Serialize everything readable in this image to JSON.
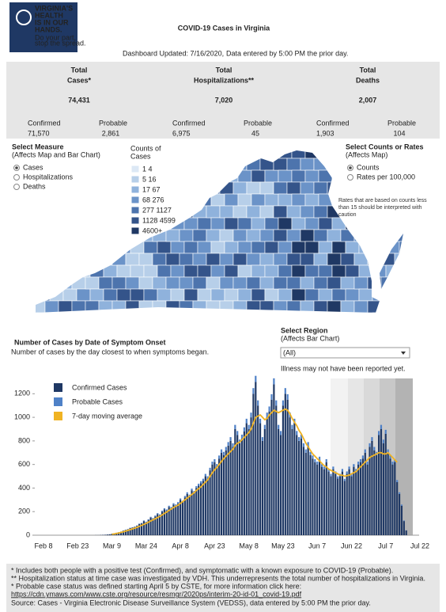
{
  "header": {
    "logo_lines": [
      "VIRGINIA'S",
      "HEALTH",
      "IS IN OUR",
      "HANDS."
    ],
    "logo_tagline": [
      "Do your part,",
      "stop the spread."
    ],
    "title": "COVID-19 Cases in Virginia",
    "updated": "Dashboard Updated: 7/16/2020,",
    "updated_note": "Data entered by 5:00 PM the prior day."
  },
  "totals": [
    {
      "label_lines": [
        "Total",
        "Cases*"
      ],
      "value": "74,431",
      "confirmed_label": "Confirmed",
      "confirmed": "71,570",
      "probable_label": "Probable",
      "probable": "2,861"
    },
    {
      "label_lines": [
        "Total",
        "Hospitalizations**"
      ],
      "value": "7,020",
      "confirmed_label": "Confirmed",
      "confirmed": "6,975",
      "probable_label": "Probable",
      "probable": "45"
    },
    {
      "label_lines": [
        "Total",
        "Deaths"
      ],
      "value": "2,007",
      "confirmed_label": "Confirmed",
      "confirmed": "1,903",
      "probable_label": "Probable",
      "probable": "104"
    }
  ],
  "map": {
    "measure_title": "Select Measure",
    "measure_subtitle": "(Affects Map and Bar Chart)",
    "measure_options": [
      "Cases",
      "Hospitalizations",
      "Deaths"
    ],
    "legend_title": [
      "Counts of",
      "Cases"
    ],
    "legend_items": [
      "1  4",
      "5  16",
      "17  67",
      "68  276",
      "277  1127",
      "1128  4599",
      "4600+"
    ],
    "legend_colors": [
      "#dce8f5",
      "#b7cfe9",
      "#8fb2dc",
      "#6b93c8",
      "#4d74ad",
      "#34548a",
      "#1f3864"
    ],
    "rate_title": "Select Counts or Rates",
    "rate_subtitle": "(Affects Map)",
    "rate_options": [
      "Counts",
      "Rates per 100,000"
    ],
    "rate_note": "Rates that are based on counts less than 15 should be interpreted with caution"
  },
  "region": {
    "title": "Select Region",
    "subtitle": "(Affects Bar Chart)",
    "selected": "(All)",
    "note": "Illness may not have been reported yet."
  },
  "chart_data": {
    "type": "bar",
    "stacked": true,
    "title": "Number of Cases by Date of Symptom Onset",
    "subtitle": "Number of cases by the day closest to when symptoms began.",
    "categories": [
      "Feb 8",
      null,
      null,
      null,
      null,
      null,
      null,
      null,
      null,
      null,
      null,
      null,
      null,
      null,
      null,
      "Feb 23",
      null,
      null,
      null,
      null,
      null,
      null,
      null,
      null,
      null,
      null,
      null,
      null,
      null,
      null,
      "Mar 9",
      null,
      null,
      null,
      null,
      null,
      null,
      null,
      null,
      null,
      null,
      null,
      null,
      null,
      null,
      "Mar 24",
      null,
      null,
      null,
      null,
      null,
      null,
      null,
      null,
      null,
      null,
      null,
      null,
      null,
      null,
      "Apr 8",
      null,
      null,
      null,
      null,
      null,
      null,
      null,
      null,
      null,
      null,
      null,
      null,
      null,
      null,
      "Apr 23",
      null,
      null,
      null,
      null,
      null,
      null,
      null,
      null,
      null,
      null,
      null,
      null,
      null,
      null,
      "May 8",
      null,
      null,
      null,
      null,
      null,
      null,
      null,
      null,
      null,
      null,
      null,
      null,
      null,
      null,
      "May 23",
      null,
      null,
      null,
      null,
      null,
      null,
      null,
      null,
      null,
      null,
      null,
      null,
      null,
      null,
      "Jun 7",
      null,
      null,
      null,
      null,
      null,
      null,
      null,
      null,
      null,
      null,
      null,
      null,
      null,
      null,
      "Jun 22",
      null,
      null,
      null,
      null,
      null,
      null,
      null,
      null,
      null,
      null,
      null,
      null,
      null,
      null,
      "Jul 7",
      null,
      null,
      null,
      null,
      null,
      null,
      null,
      null,
      null,
      null,
      null,
      null,
      null,
      null,
      "Jul 22"
    ],
    "series": [
      {
        "name": "Confirmed Cases",
        "color": "#1f3864",
        "values": [
          0,
          0,
          0,
          0,
          0,
          0,
          0,
          0,
          0,
          0,
          0,
          0,
          0,
          0,
          0,
          0,
          0,
          0,
          0,
          0,
          0,
          0,
          0,
          1,
          1,
          2,
          3,
          4,
          6,
          8,
          12,
          15,
          20,
          25,
          30,
          38,
          45,
          50,
          60,
          65,
          70,
          80,
          95,
          100,
          120,
          110,
          130,
          150,
          140,
          160,
          180,
          170,
          200,
          220,
          210,
          240,
          230,
          260,
          250,
          270,
          300,
          280,
          320,
          350,
          330,
          380,
          360,
          400,
          420,
          440,
          460,
          500,
          480,
          550,
          600,
          620,
          580,
          650,
          700,
          680,
          720,
          760,
          800,
          750,
          900,
          850,
          780,
          820,
          880,
          950,
          900,
          1000,
          1200,
          1300,
          1100,
          950,
          800,
          900,
          1000,
          1050,
          1150,
          1280,
          1100,
          900,
          850,
          1100,
          1200,
          1150,
          1000,
          900,
          950,
          850,
          800,
          820,
          750,
          700,
          760,
          680,
          650,
          620,
          600,
          640,
          580,
          560,
          620,
          540,
          500,
          560,
          520,
          480,
          500,
          540,
          460,
          520,
          560,
          500,
          580,
          540,
          600,
          620,
          650,
          700,
          600,
          750,
          800,
          720,
          680,
          850,
          900,
          780,
          860,
          700,
          650,
          600,
          620,
          450,
          350,
          250,
          120,
          40,
          null,
          null,
          null,
          null,
          null,
          null
        ]
      },
      {
        "name": "Probable Cases",
        "color": "#4f81c7",
        "values": [
          0,
          0,
          0,
          0,
          0,
          0,
          0,
          0,
          0,
          0,
          0,
          0,
          0,
          0,
          0,
          0,
          0,
          0,
          0,
          0,
          0,
          0,
          0,
          0,
          0,
          0,
          0,
          0,
          0,
          0,
          0,
          0,
          1,
          1,
          1,
          2,
          2,
          2,
          3,
          3,
          3,
          3,
          4,
          4,
          5,
          5,
          5,
          6,
          6,
          7,
          7,
          7,
          8,
          9,
          9,
          10,
          10,
          11,
          11,
          12,
          12,
          12,
          13,
          14,
          14,
          15,
          15,
          16,
          17,
          18,
          19,
          20,
          20,
          22,
          24,
          25,
          24,
          26,
          28,
          27,
          29,
          30,
          32,
          30,
          36,
          34,
          31,
          33,
          35,
          38,
          36,
          40,
          48,
          52,
          44,
          38,
          32,
          36,
          40,
          42,
          46,
          51,
          44,
          36,
          34,
          44,
          48,
          46,
          40,
          36,
          38,
          34,
          32,
          33,
          30,
          28,
          30,
          27,
          26,
          25,
          24,
          26,
          23,
          22,
          25,
          22,
          20,
          22,
          21,
          19,
          20,
          22,
          18,
          21,
          22,
          20,
          23,
          22,
          24,
          25,
          26,
          28,
          24,
          30,
          32,
          29,
          27,
          34,
          36,
          31,
          34,
          28,
          26,
          24,
          25,
          18,
          14,
          10,
          5,
          2,
          null,
          null,
          null,
          null,
          null,
          null
        ]
      },
      {
        "name": "7-day moving average",
        "type": "line",
        "color": "#f0b323",
        "values": [
          null,
          null,
          null,
          null,
          null,
          null,
          null,
          null,
          null,
          null,
          null,
          null,
          null,
          null,
          null,
          null,
          null,
          null,
          null,
          null,
          null,
          null,
          null,
          null,
          null,
          null,
          null,
          null,
          null,
          null,
          8,
          11,
          15,
          19,
          24,
          29,
          35,
          40,
          47,
          54,
          60,
          67,
          75,
          83,
          92,
          100,
          110,
          120,
          130,
          140,
          150,
          160,
          172,
          185,
          197,
          210,
          222,
          235,
          245,
          255,
          270,
          285,
          300,
          315,
          330,
          345,
          360,
          380,
          395,
          410,
          430,
          450,
          470,
          500,
          530,
          555,
          575,
          600,
          625,
          650,
          670,
          690,
          710,
          730,
          760,
          780,
          790,
          810,
          830,
          850,
          870,
          900,
          950,
          1000,
          1010,
          1020,
          1000,
          980,
          990,
          1020,
          1040,
          1060,
          1050,
          1040,
          1050,
          1060,
          1070,
          1060,
          1030,
          990,
          960,
          930,
          890,
          860,
          820,
          780,
          750,
          720,
          690,
          670,
          650,
          630,
          610,
          590,
          580,
          560,
          550,
          540,
          530,
          520,
          510,
          510,
          500,
          505,
          510,
          520,
          530,
          540,
          560,
          580,
          600,
          620,
          640,
          660,
          670,
          680,
          690,
          700,
          700,
          690,
          690,
          700,
          680,
          660,
          640,
          620,
          null,
          null,
          null,
          null,
          null,
          null,
          null,
          null,
          null,
          null
        ]
      }
    ],
    "ylim": [
      0,
      1350
    ],
    "yticks": [
      0,
      200,
      400,
      600,
      800,
      1000,
      1200
    ]
  },
  "footer": {
    "lines": [
      "* Includes both people with a positive test (Confirmed), and symptomatic with a known exposure to COVID-19 (Probable).",
      "** Hospitalization status at time case was investigated by VDH. This underrepresents the total number of hospitalizations in Virginia.",
      "* Probable case status was defined starting April 5 by CSTE, for more information click here:"
    ],
    "link": "https://cdn.ymaws.com/www.cste.org/resource/resmgr/2020ps/interim-20-id-01_covid-19.pdf",
    "source": "Source:  Cases - Virginia Electronic Disease Surveillance System (VEDSS), data entered by 5:00 PM the prior day."
  }
}
